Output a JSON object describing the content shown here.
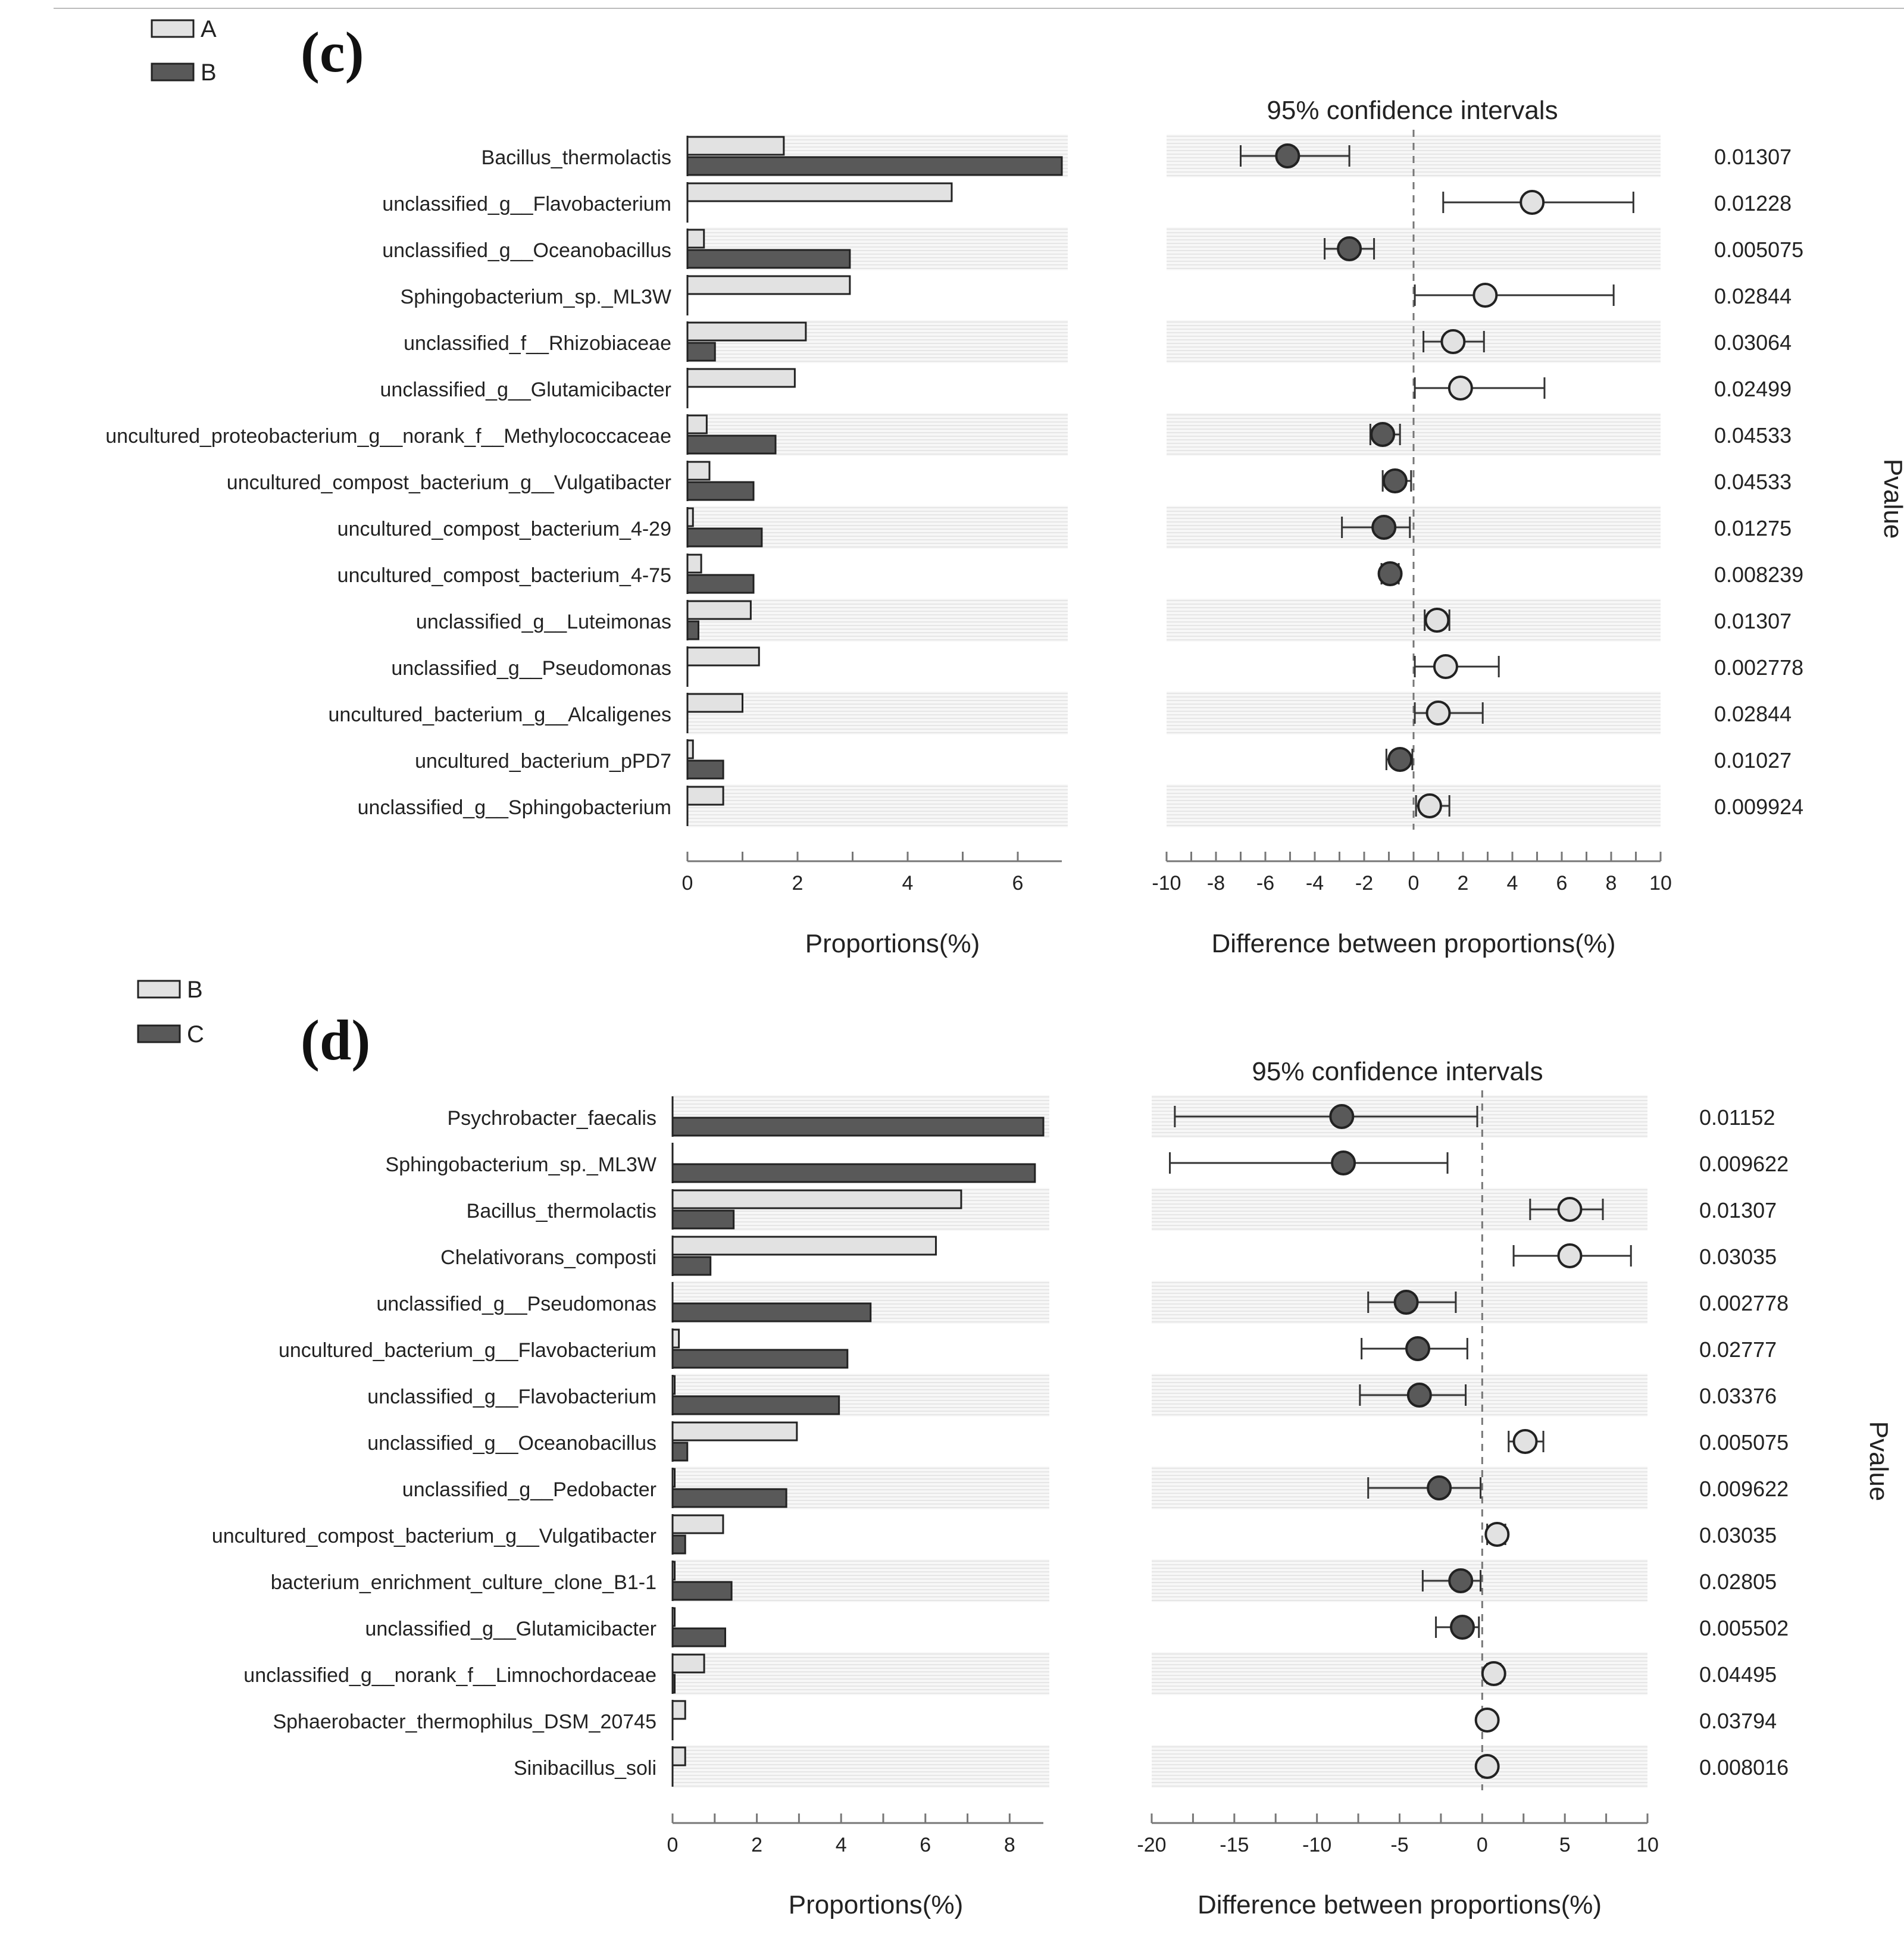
{
  "chart_data": [
    {
      "type": "bar",
      "panel_label": "(c)",
      "legend": [
        {
          "name": "A",
          "color": "#e2e2e2"
        },
        {
          "name": "B",
          "color": "#595959"
        }
      ],
      "ci_title": "95% confidence intervals",
      "pvalue_label": "Pvalue",
      "xlabel_left": "Proportions(%)",
      "xlabel_right": "Difference between proportions(%)",
      "left_ticks": [
        0,
        2,
        4,
        6
      ],
      "left_xlim": [
        0,
        6.8
      ],
      "right_ticks": [
        -10,
        -8,
        -6,
        -4,
        -2,
        0,
        2,
        4,
        6,
        8,
        10
      ],
      "right_xlim": [
        -10,
        10
      ],
      "categories": [
        "Bacillus_thermolactis",
        "unclassified_g__Flavobacterium",
        "unclassified_g__Oceanobacillus",
        "Sphingobacterium_sp._ML3W",
        "unclassified_f__Rhizobiaceae",
        "unclassified_g__Glutamicibacter",
        "uncultured_proteobacterium_g__norank_f__Methylococcaceae",
        "uncultured_compost_bacterium_g__Vulgatibacter",
        "uncultured_compost_bacterium_4-29",
        "uncultured_compost_bacterium_4-75",
        "unclassified_g__Luteimonas",
        "unclassified_g__Pseudomonas",
        "uncultured_bacterium_g__Alcaligenes",
        "uncultured_bacterium_pPD7",
        "unclassified_g__Sphingobacterium"
      ],
      "series": [
        {
          "name": "A",
          "values": [
            1.75,
            4.8,
            0.3,
            2.95,
            2.15,
            1.95,
            0.35,
            0.4,
            0.1,
            0.25,
            1.15,
            1.3,
            1.0,
            0.1,
            0.65
          ]
        },
        {
          "name": "B",
          "values": [
            6.8,
            0.0,
            2.95,
            0.0,
            0.5,
            0.0,
            1.6,
            1.2,
            1.35,
            1.2,
            0.2,
            0.0,
            0.0,
            0.65,
            0.0
          ]
        }
      ],
      "difference": {
        "estimate": [
          -5.1,
          4.8,
          -2.6,
          2.9,
          1.6,
          1.9,
          -1.25,
          -0.75,
          -1.2,
          -0.95,
          0.95,
          1.3,
          1.0,
          -0.55,
          0.65
        ],
        "ci_low": [
          -7.0,
          1.2,
          -3.6,
          0.05,
          0.4,
          0.05,
          -1.75,
          -1.25,
          -2.9,
          -1.3,
          0.45,
          0.05,
          0.05,
          -1.1,
          0.1
        ],
        "ci_high": [
          -2.6,
          8.9,
          -1.6,
          8.1,
          2.85,
          5.3,
          -0.55,
          -0.1,
          -0.15,
          -0.6,
          1.45,
          3.45,
          2.8,
          -0.05,
          1.45
        ]
      },
      "pvalues": [
        "0.01307",
        "0.01228",
        "0.005075",
        "0.02844",
        "0.03064",
        "0.02499",
        "0.04533",
        "0.04533",
        "0.01275",
        "0.008239",
        "0.01307",
        "0.002778",
        "0.02844",
        "0.01027",
        "0.009924"
      ]
    },
    {
      "type": "bar",
      "panel_label": "(d)",
      "legend": [
        {
          "name": "B",
          "color": "#e2e2e2"
        },
        {
          "name": "C",
          "color": "#595959"
        }
      ],
      "ci_title": "95% confidence intervals",
      "pvalue_label": "Pvalue",
      "xlabel_left": "Proportions(%)",
      "xlabel_right": "Difference between proportions(%)",
      "left_ticks": [
        0,
        2,
        4,
        6,
        8
      ],
      "left_xlim": [
        0,
        8.8
      ],
      "right_ticks": [
        -20,
        -15,
        -10,
        -5,
        0,
        5,
        10
      ],
      "right_xlim": [
        -20,
        10
      ],
      "categories": [
        "Psychrobacter_faecalis",
        "Sphingobacterium_sp._ML3W",
        "Bacillus_thermolactis",
        "Chelativorans_composti",
        "unclassified_g__Pseudomonas",
        "uncultured_bacterium_g__Flavobacterium",
        "unclassified_g__Flavobacterium",
        "unclassified_g__Oceanobacillus",
        "unclassified_g__Pedobacter",
        "uncultured_compost_bacterium_g__Vulgatibacter",
        "bacterium_enrichment_culture_clone_B1-1",
        "unclassified_g__Glutamicibacter",
        "unclassified_g__norank_f__Limnochordaceae",
        "Sphaerobacter_thermophilus_DSM_20745",
        "Sinibacillus_soli"
      ],
      "series": [
        {
          "name": "B",
          "values": [
            0.0,
            0.0,
            6.85,
            6.25,
            0.0,
            0.15,
            0.05,
            2.95,
            0.05,
            1.2,
            0.05,
            0.05,
            0.75,
            0.3,
            0.3
          ]
        },
        {
          "name": "C",
          "values": [
            8.8,
            8.6,
            1.45,
            0.9,
            4.7,
            4.15,
            3.95,
            0.35,
            2.7,
            0.3,
            1.4,
            1.25,
            0.05,
            0.0,
            0.0
          ]
        }
      ],
      "difference": {
        "estimate": [
          -8.5,
          -8.4,
          5.3,
          5.3,
          -4.6,
          -3.9,
          -3.8,
          2.6,
          -2.6,
          0.9,
          -1.3,
          -1.2,
          0.7,
          0.3,
          0.3
        ],
        "ci_low": [
          -18.6,
          -18.9,
          2.9,
          1.9,
          -6.9,
          -7.3,
          -7.4,
          1.6,
          -6.9,
          0.3,
          -3.6,
          -2.8,
          0.3,
          0.0,
          0.0
        ],
        "ci_high": [
          -0.3,
          -2.1,
          7.3,
          9.0,
          -1.6,
          -0.9,
          -1.0,
          3.7,
          -0.1,
          1.4,
          -0.1,
          -0.2,
          1.1,
          0.6,
          0.6
        ]
      },
      "pvalues": [
        "0.01152",
        "0.009622",
        "0.01307",
        "0.03035",
        "0.002778",
        "0.02777",
        "0.03376",
        "0.005075",
        "0.009622",
        "0.03035",
        "0.02805",
        "0.005502",
        "0.04495",
        "0.03794",
        "0.008016"
      ]
    }
  ]
}
